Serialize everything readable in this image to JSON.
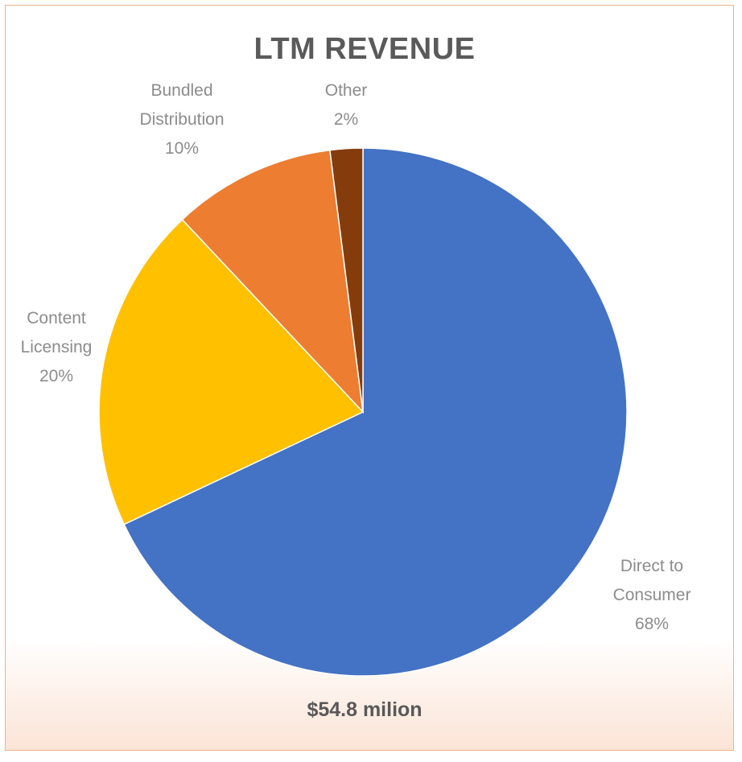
{
  "chart_data": {
    "type": "pie",
    "title": "LTM REVENUE",
    "subtitle": "$54.8 milion",
    "slices": [
      {
        "name": "Direct to Consumer",
        "value": 68,
        "label_lines": [
          "Direct to",
          "Consumer",
          "68%"
        ],
        "color": "#4472c4"
      },
      {
        "name": "Content Licensing",
        "value": 20,
        "label_lines": [
          "Content",
          "Licensing",
          "20%"
        ],
        "color": "#ffc000"
      },
      {
        "name": "Bundled Distribution",
        "value": 10,
        "label_lines": [
          "Bundled",
          "Distribution",
          "10%"
        ],
        "color": "#ed7d31"
      },
      {
        "name": "Other",
        "value": 2,
        "label_lines": [
          "Other",
          "2%"
        ],
        "color": "#843c0c"
      }
    ],
    "legend": false,
    "start_angle": "12 o'clock",
    "direction": "clockwise"
  }
}
